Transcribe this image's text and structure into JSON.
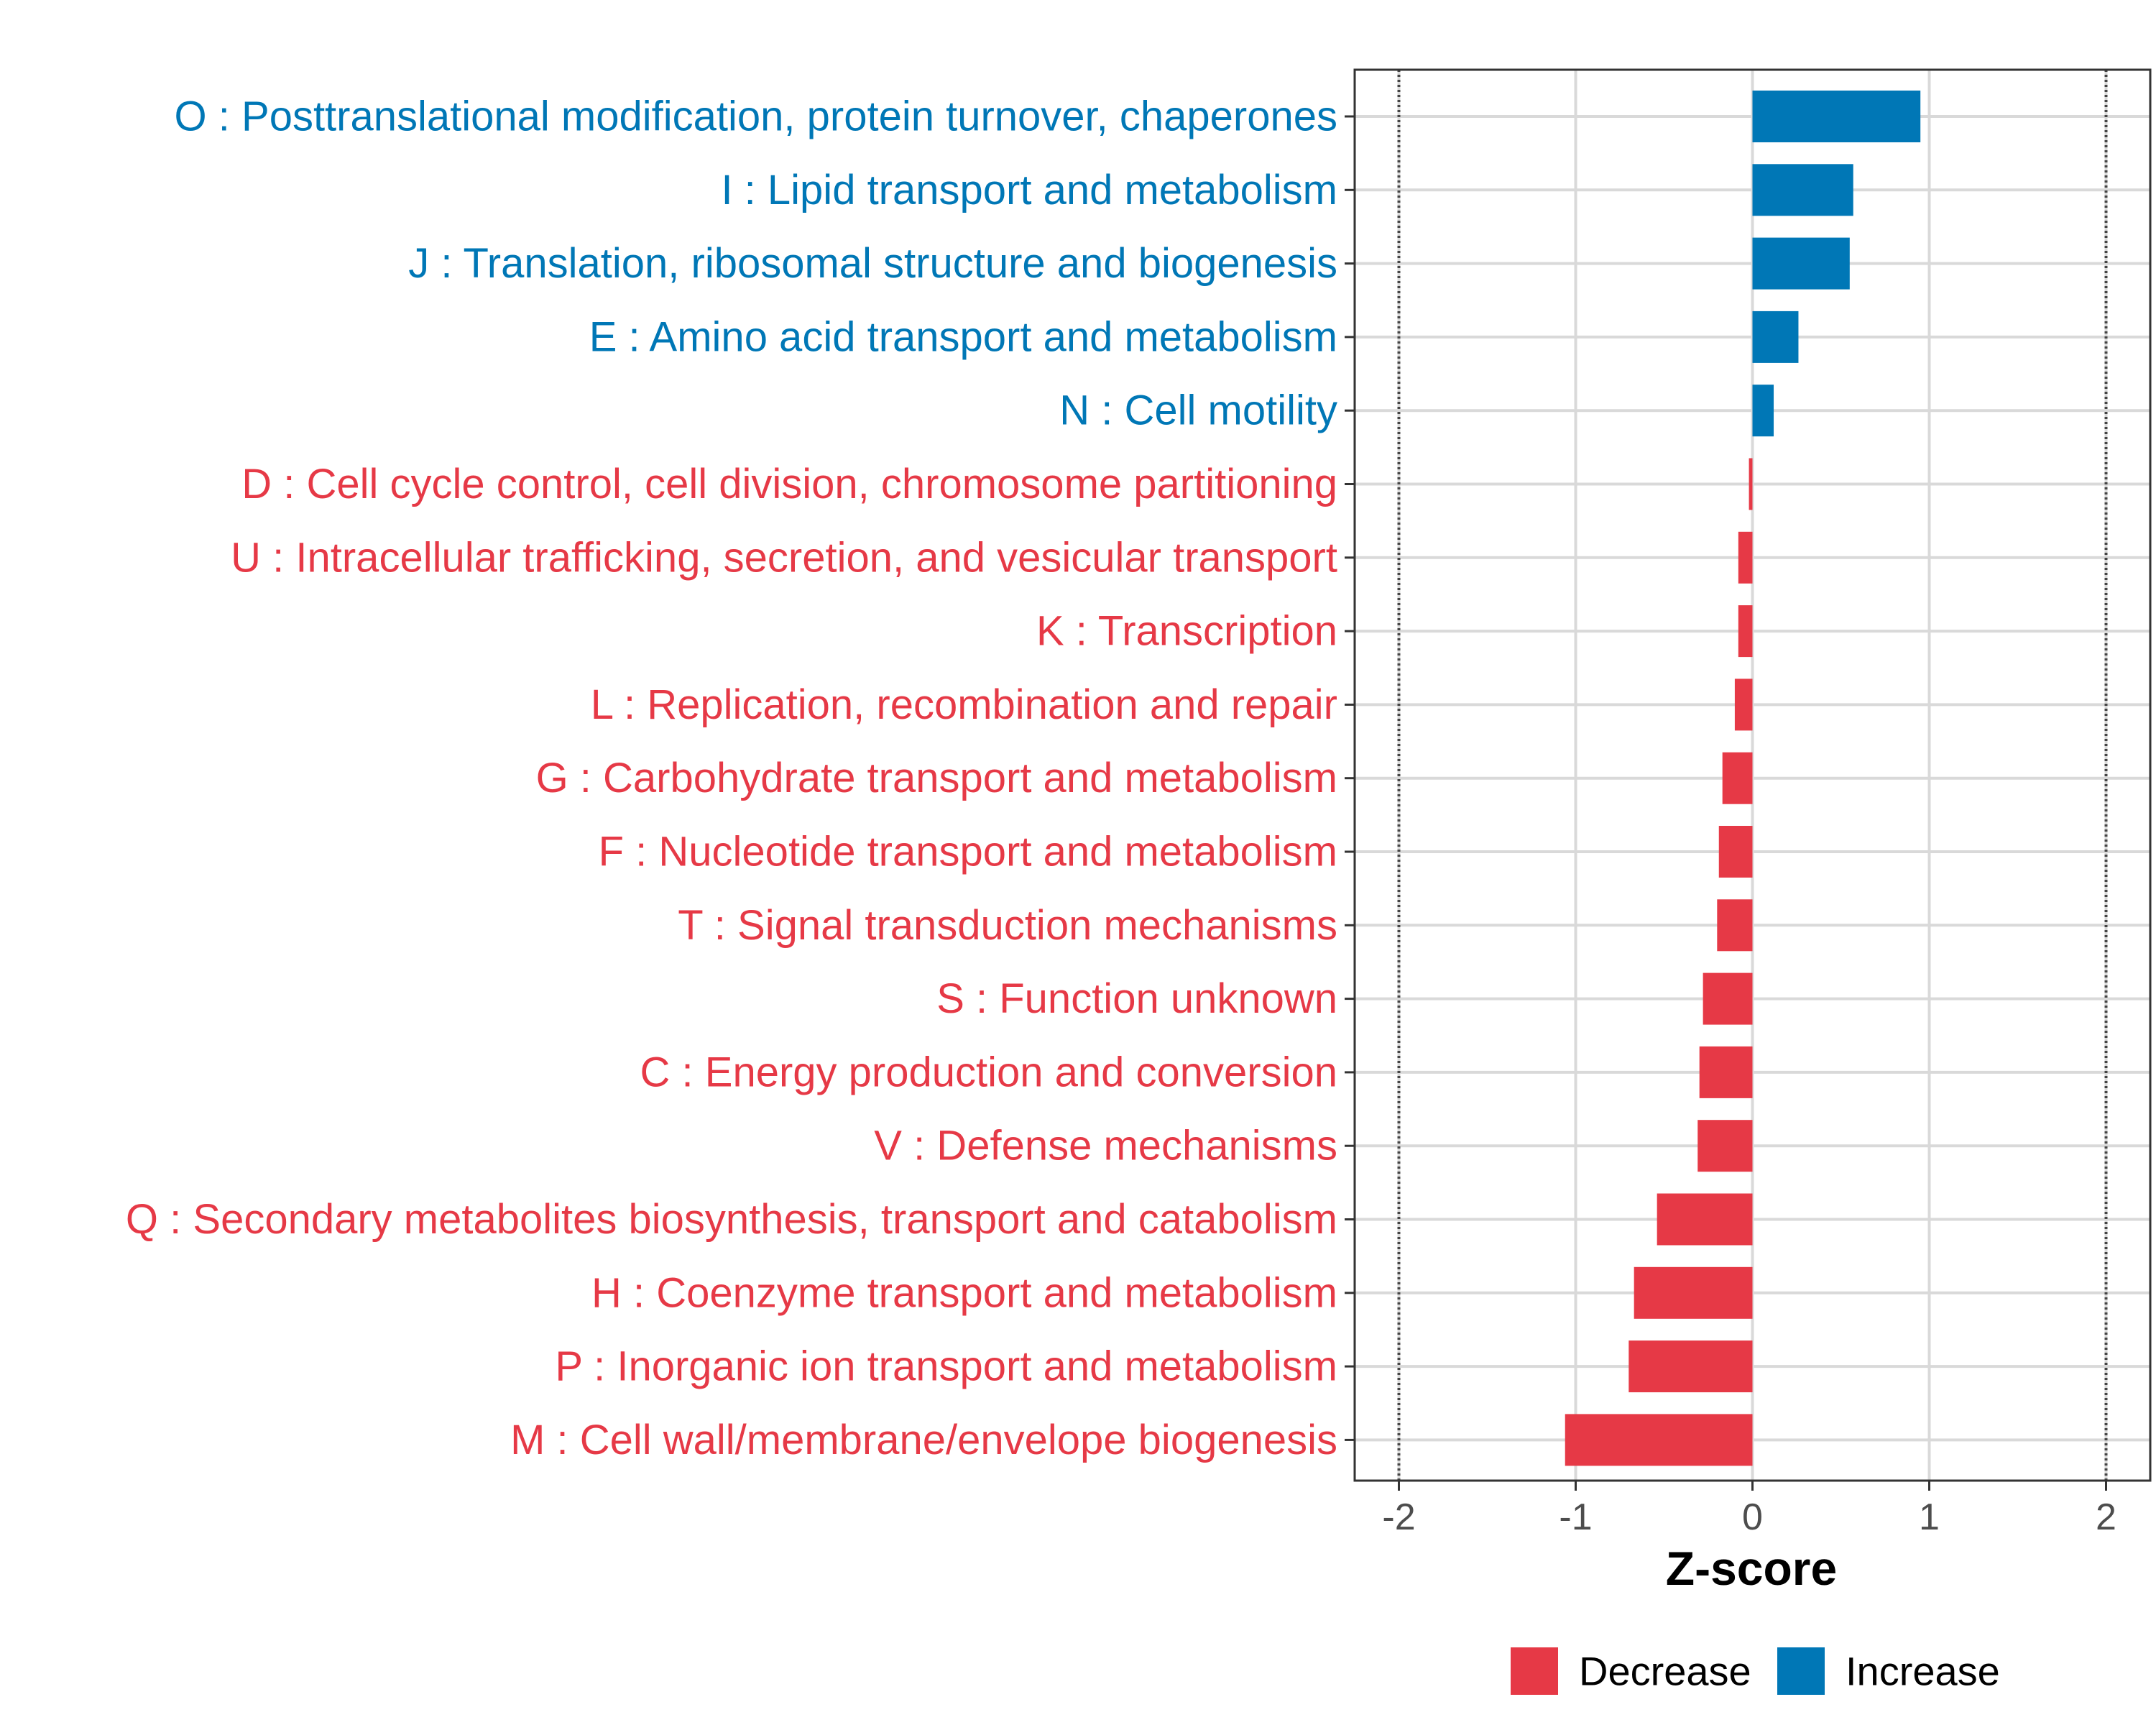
{
  "chart_data": {
    "type": "bar",
    "orientation": "horizontal",
    "title": "",
    "xlabel": "Z-score",
    "ylabel": "",
    "xlim": [
      -2.25,
      2.25
    ],
    "xticks": [
      -2,
      -1,
      0,
      1,
      2
    ],
    "xtick_labels": [
      "-2",
      "-1",
      "0",
      "1",
      "2"
    ],
    "reference_lines": [
      -2,
      2
    ],
    "grid": true,
    "legend_position": "bottom",
    "colors": {
      "Decrease": "#e63946",
      "Increase": "#0077b6"
    },
    "categories": [
      "O : Posttranslational modification, protein turnover, chaperones",
      "I : Lipid transport and metabolism",
      "J : Translation, ribosomal structure and biogenesis",
      "E : Amino acid transport and metabolism",
      "N : Cell motility",
      "D : Cell cycle control, cell division, chromosome partitioning",
      "U : Intracellular trafficking, secretion, and vesicular transport",
      "K : Transcription",
      "L : Replication, recombination and repair",
      "G : Carbohydrate transport and metabolism",
      "F : Nucleotide transport and metabolism",
      "T : Signal transduction mechanisms",
      "S : Function unknown",
      "C : Energy production and conversion",
      "V : Defense mechanisms",
      "Q : Secondary metabolites biosynthesis, transport and catabolism",
      "H : Coenzyme transport and metabolism",
      "P : Inorganic ion transport and metabolism",
      "M : Cell wall/membrane/envelope biogenesis"
    ],
    "values": [
      0.95,
      0.57,
      0.55,
      0.26,
      0.12,
      -0.02,
      -0.08,
      -0.08,
      -0.1,
      -0.17,
      -0.19,
      -0.2,
      -0.28,
      -0.3,
      -0.31,
      -0.54,
      -0.67,
      -0.7,
      -1.06
    ],
    "groups": [
      "Increase",
      "Increase",
      "Increase",
      "Increase",
      "Increase",
      "Decrease",
      "Decrease",
      "Decrease",
      "Decrease",
      "Decrease",
      "Decrease",
      "Decrease",
      "Decrease",
      "Decrease",
      "Decrease",
      "Decrease",
      "Decrease",
      "Decrease",
      "Decrease"
    ],
    "legend": [
      {
        "name": "Decrease",
        "color": "#e63946"
      },
      {
        "name": "Increase",
        "color": "#0077b6"
      }
    ]
  }
}
